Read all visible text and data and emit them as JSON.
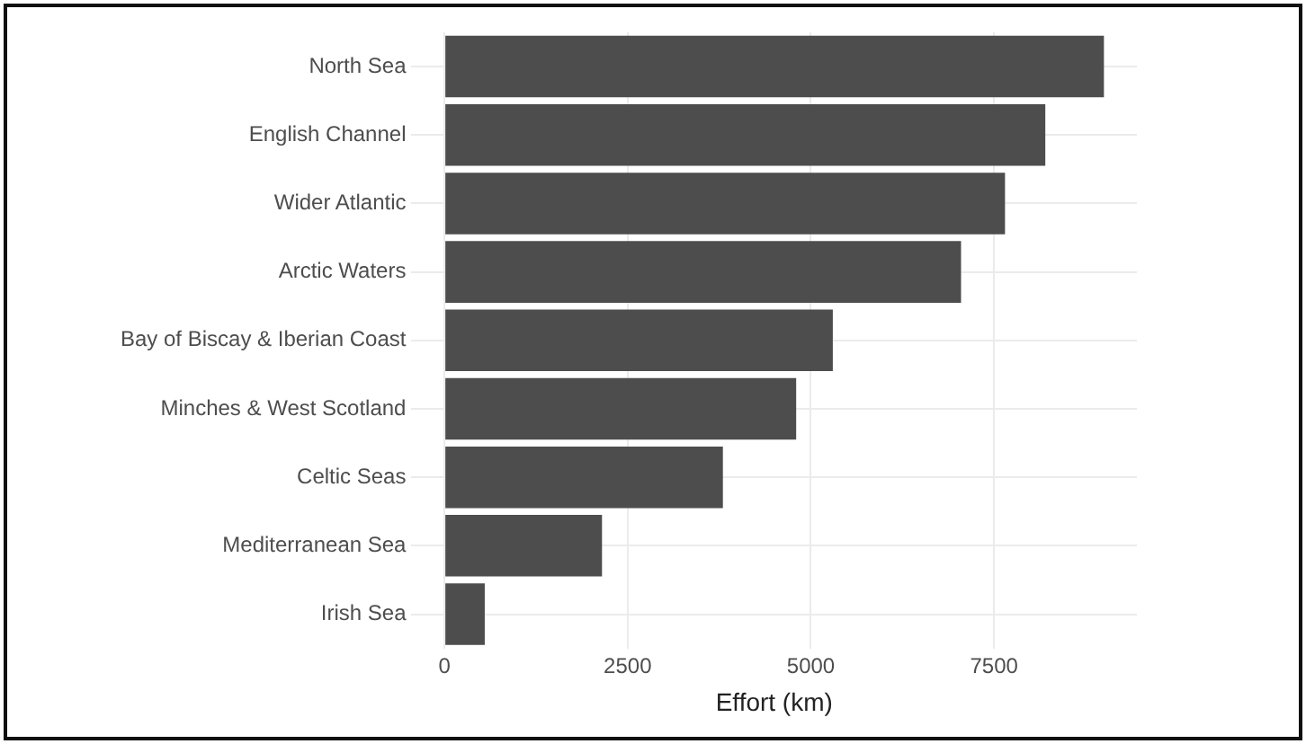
{
  "chart_data": {
    "type": "bar",
    "orientation": "horizontal",
    "xlabel": "Effort (km)",
    "categories": [
      "North Sea",
      "English Channel",
      "Wider Atlantic",
      "Arctic Waters",
      "Bay of Biscay & Iberian Coast",
      "Minches & West Scotland",
      "Celtic Seas",
      "Mediterranean Sea",
      "Irish Sea"
    ],
    "values": [
      9000,
      8200,
      7650,
      7050,
      5300,
      4800,
      3800,
      2150,
      550
    ],
    "color": "#4d4d4d",
    "xlim": [
      -450,
      9450
    ],
    "xticks": [
      0,
      2500,
      5000,
      7500
    ],
    "grid": true
  }
}
